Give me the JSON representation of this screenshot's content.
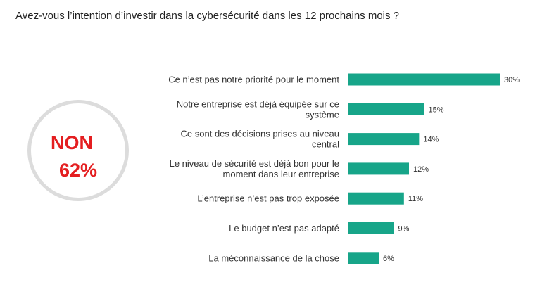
{
  "title": "Avez-vous l’intention d’investir dans la cybersécurité dans les 12 prochains mois ?",
  "highlight": {
    "label": "NON",
    "value": "62%",
    "color": "#e41e20",
    "ring_color": "#dcdcdc"
  },
  "chart_data": {
    "type": "bar",
    "orientation": "horizontal",
    "bar_color": "#17a589",
    "categories": [
      [
        "Ce n’est pas notre priorité pour le moment"
      ],
      [
        "Notre entreprise est déjà équipée sur ce",
        "système"
      ],
      [
        "Ce sont des décisions prises au niveau",
        "central"
      ],
      [
        "Le niveau de sécurité est déjà bon pour le",
        "moment dans leur entreprise"
      ],
      [
        "L’entreprise n’est pas trop exposée"
      ],
      [
        "Le budget n’est pas adapté"
      ],
      [
        "La méconnaissance de la chose"
      ]
    ],
    "values": [
      30,
      15,
      14,
      12,
      11,
      9,
      6
    ],
    "value_labels": [
      "30%",
      "15%",
      "14%",
      "12%",
      "11%",
      "9%",
      "6%"
    ],
    "unit": "%",
    "xlim": [
      0,
      30
    ]
  }
}
